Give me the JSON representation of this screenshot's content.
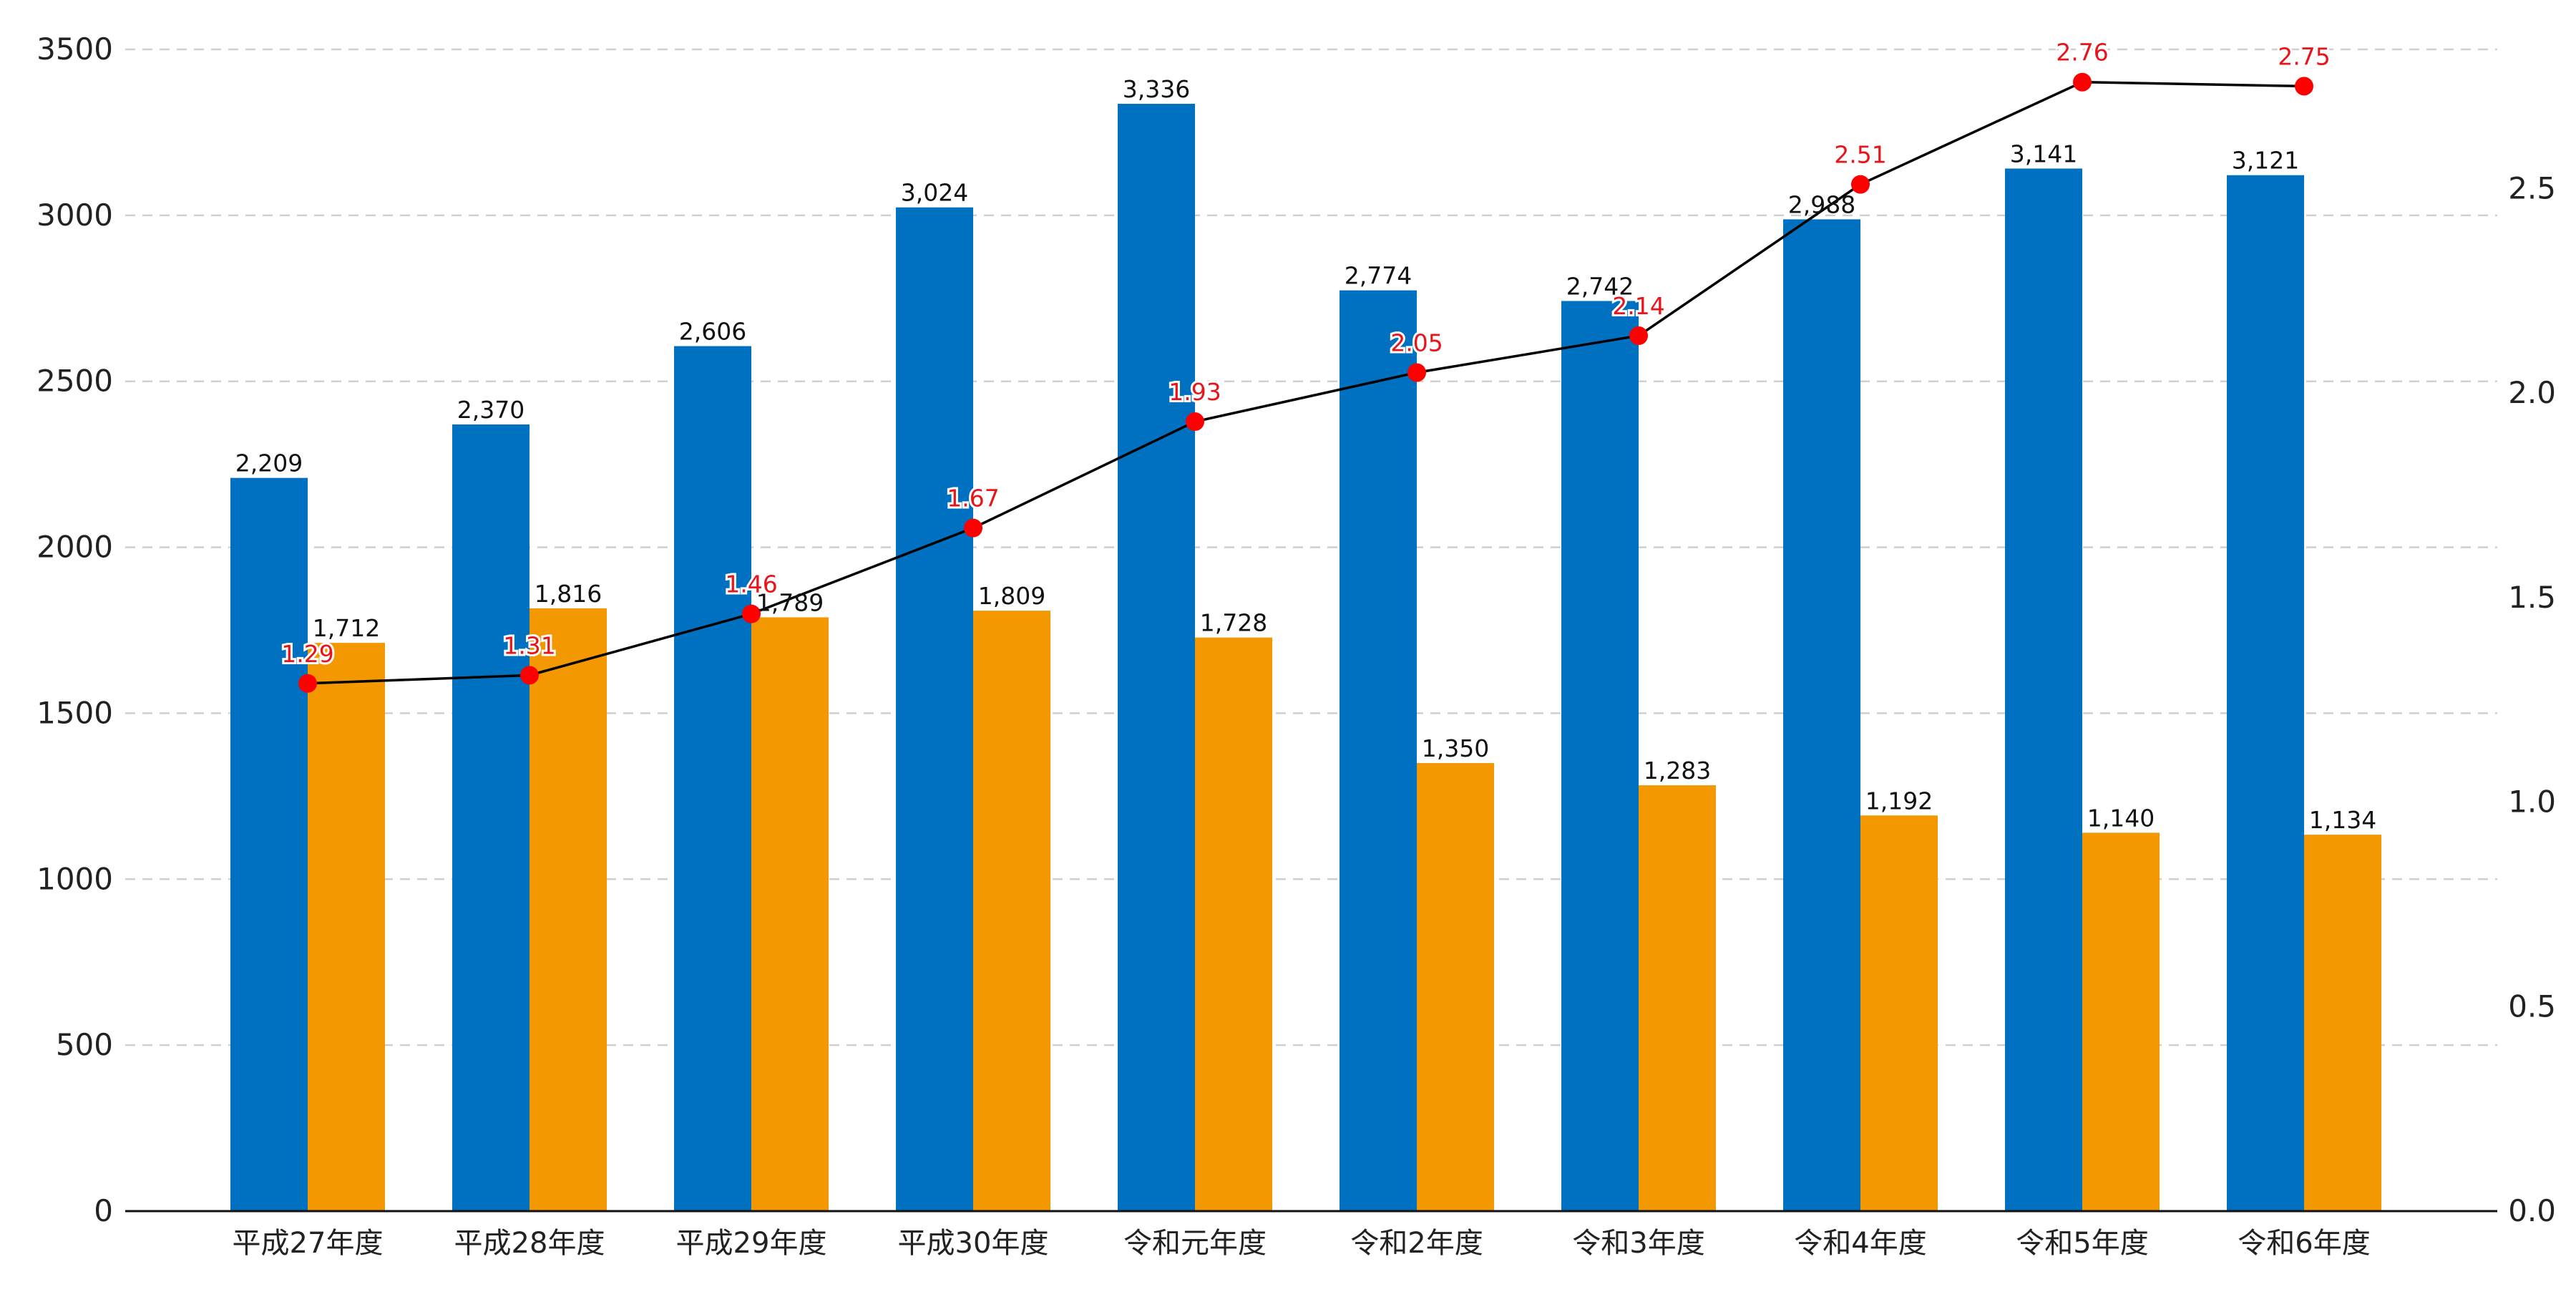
{
  "chart_data": {
    "type": "bar",
    "categories": [
      "平成27年度",
      "平成28年度",
      "平成29年度",
      "平成30年度",
      "令和元年度",
      "令和2年度",
      "令和3年度",
      "令和4年度",
      "令和5年度",
      "令和6年度"
    ],
    "series": [
      {
        "kind": "bar",
        "axis": "left",
        "color": "#0070c0",
        "values": [
          2209,
          2370,
          2606,
          3024,
          3336,
          2774,
          2742,
          2988,
          3141,
          3121
        ],
        "labels": [
          "2,209",
          "2,370",
          "2,606",
          "3,024",
          "3,336",
          "2,774",
          "2,742",
          "2,988",
          "3,141",
          "3,121"
        ]
      },
      {
        "kind": "bar",
        "axis": "left",
        "color": "#f39800",
        "values": [
          1712,
          1816,
          1789,
          1809,
          1728,
          1350,
          1283,
          1192,
          1140,
          1134
        ],
        "labels": [
          "1,712",
          "1,816",
          "1,789",
          "1,809",
          "1,728",
          "1,350",
          "1,283",
          "1,192",
          "1,140",
          "1,134"
        ]
      },
      {
        "kind": "line",
        "axis": "right",
        "line_color": "#000000",
        "marker_color": "#ff0000",
        "label_color": "#e8141a",
        "values": [
          1.29,
          1.31,
          1.46,
          1.67,
          1.93,
          2.05,
          2.14,
          2.51,
          2.76,
          2.75
        ],
        "labels": [
          "1.29",
          "1.31",
          "1.46",
          "1.67",
          "1.93",
          "2.05",
          "2.14",
          "2.51",
          "2.76",
          "2.75"
        ]
      }
    ],
    "left_axis": {
      "ylim": [
        0,
        3500
      ],
      "ticks": [
        0,
        500,
        1000,
        1500,
        2000,
        2500,
        3000,
        3500
      ],
      "tick_labels": [
        "0",
        "500",
        "1000",
        "1500",
        "2000",
        "2500",
        "3000",
        "3500"
      ]
    },
    "right_axis": {
      "ylim": [
        0,
        2.84
      ],
      "ticks": [
        0,
        0.5,
        1,
        1.5,
        2,
        2.5
      ],
      "tick_labels": [
        "0.0",
        "0.5",
        "1.0",
        "1.5",
        "2.0",
        "2.5"
      ]
    },
    "grid": true,
    "grid_color": "#cfcfcf",
    "legend": false,
    "title": "",
    "xlabel": "",
    "ylabel": ""
  }
}
